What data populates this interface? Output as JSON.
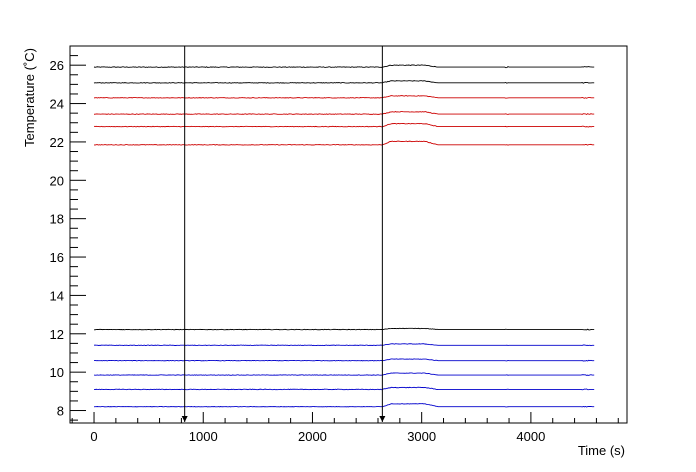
{
  "chart_data": {
    "type": "line",
    "title": "",
    "xlabel": "Time (s)",
    "ylabel": "Temperature (˚C)",
    "xlim": [
      -220,
      4880
    ],
    "ylim": [
      7.35,
      27.0
    ],
    "x_ticks": [
      0,
      1000,
      2000,
      3000,
      4000
    ],
    "x_tick_labels": [
      "0",
      "1000",
      "2000",
      "3000",
      "4000"
    ],
    "y_ticks": [
      8,
      10,
      12,
      14,
      16,
      18,
      20,
      22,
      24,
      26
    ],
    "y_tick_labels": [
      "8",
      "10",
      "12",
      "14",
      "16",
      "18",
      "20",
      "22",
      "24",
      "26"
    ],
    "grid": false,
    "legend": "none",
    "x_range_of_series": [
      0,
      4580
    ],
    "markers": [
      {
        "x": 830
      },
      {
        "x": 2640
      }
    ],
    "series": [
      {
        "color": "#000000",
        "values_start": 25.9,
        "bump": 0.1,
        "noise": 0.035
      },
      {
        "color": "#000000",
        "values_start": 25.08,
        "bump": 0.1,
        "noise": 0.03
      },
      {
        "color": "#cc0000",
        "values_start": 24.3,
        "bump": 0.1,
        "noise": 0.03
      },
      {
        "color": "#cc0000",
        "values_start": 23.45,
        "bump": 0.12,
        "noise": 0.03
      },
      {
        "color": "#cc0000",
        "values_start": 22.8,
        "bump": 0.15,
        "noise": 0.03
      },
      {
        "color": "#cc0000",
        "values_start": 21.85,
        "bump": 0.18,
        "noise": 0.03
      },
      {
        "color": "#000000",
        "values_start": 12.22,
        "bump": 0.06,
        "noise": 0.025
      },
      {
        "color": "#0000cc",
        "values_start": 11.4,
        "bump": 0.07,
        "noise": 0.025
      },
      {
        "color": "#0000cc",
        "values_start": 10.6,
        "bump": 0.08,
        "noise": 0.025
      },
      {
        "color": "#0000cc",
        "values_start": 9.85,
        "bump": 0.1,
        "noise": 0.025
      },
      {
        "color": "#0000cc",
        "values_start": 9.1,
        "bump": 0.1,
        "noise": 0.03
      },
      {
        "color": "#0000cc",
        "values_start": 8.2,
        "bump": 0.15,
        "noise": 0.02
      }
    ]
  }
}
